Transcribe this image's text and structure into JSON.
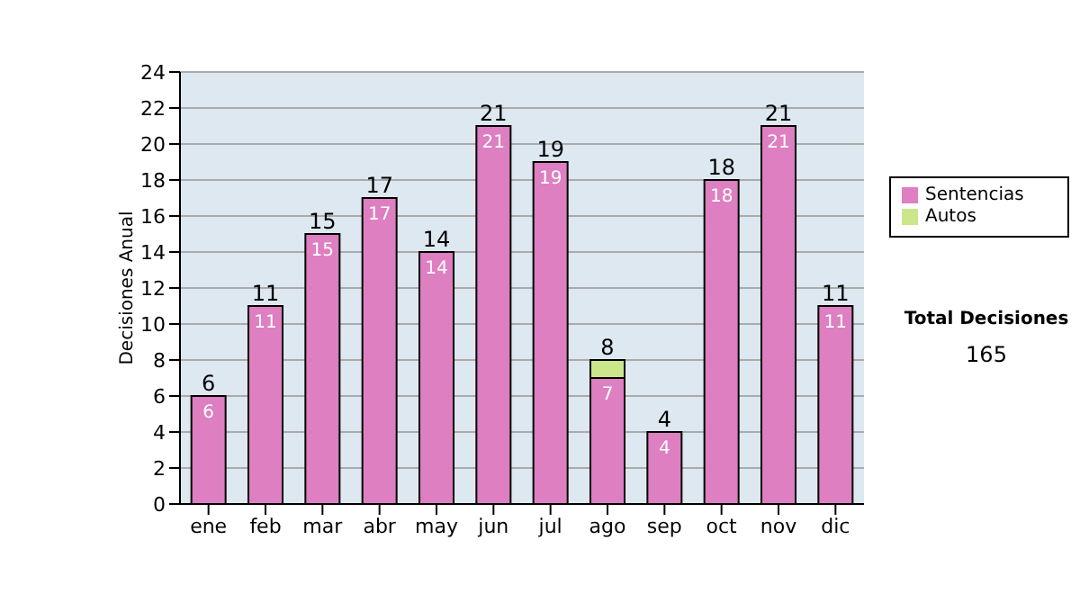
{
  "chart_data": {
    "type": "bar",
    "ylabel": "Decisiones Anual",
    "categories": [
      "ene",
      "feb",
      "mar",
      "abr",
      "may",
      "jun",
      "jul",
      "ago",
      "sep",
      "oct",
      "nov",
      "dic"
    ],
    "stacked": true,
    "series": [
      {
        "name": "Sentencias",
        "color": "#dd7fc0",
        "values": [
          6,
          11,
          15,
          17,
          14,
          21,
          19,
          7,
          4,
          18,
          21,
          11
        ],
        "value_labels": [
          "6",
          "11",
          "15",
          "17",
          "14",
          "21",
          "19",
          "7",
          "4",
          "18",
          "21",
          "11"
        ]
      },
      {
        "name": "Autos",
        "color": "#cce68c",
        "values": [
          null,
          null,
          null,
          null,
          null,
          null,
          null,
          1,
          null,
          null,
          null,
          null
        ]
      }
    ],
    "totals": [
      "6",
      "11",
      "15",
      "17",
      "14",
      "21",
      "19",
      "8",
      "4",
      "18",
      "21",
      "11"
    ],
    "ylim": [
      0,
      24
    ],
    "yticks": [
      0,
      2,
      4,
      6,
      8,
      10,
      12,
      14,
      16,
      18,
      20,
      22,
      24
    ],
    "grid": "y",
    "legend": "right",
    "annotations": [
      "Total Decisiones",
      "165"
    ]
  }
}
